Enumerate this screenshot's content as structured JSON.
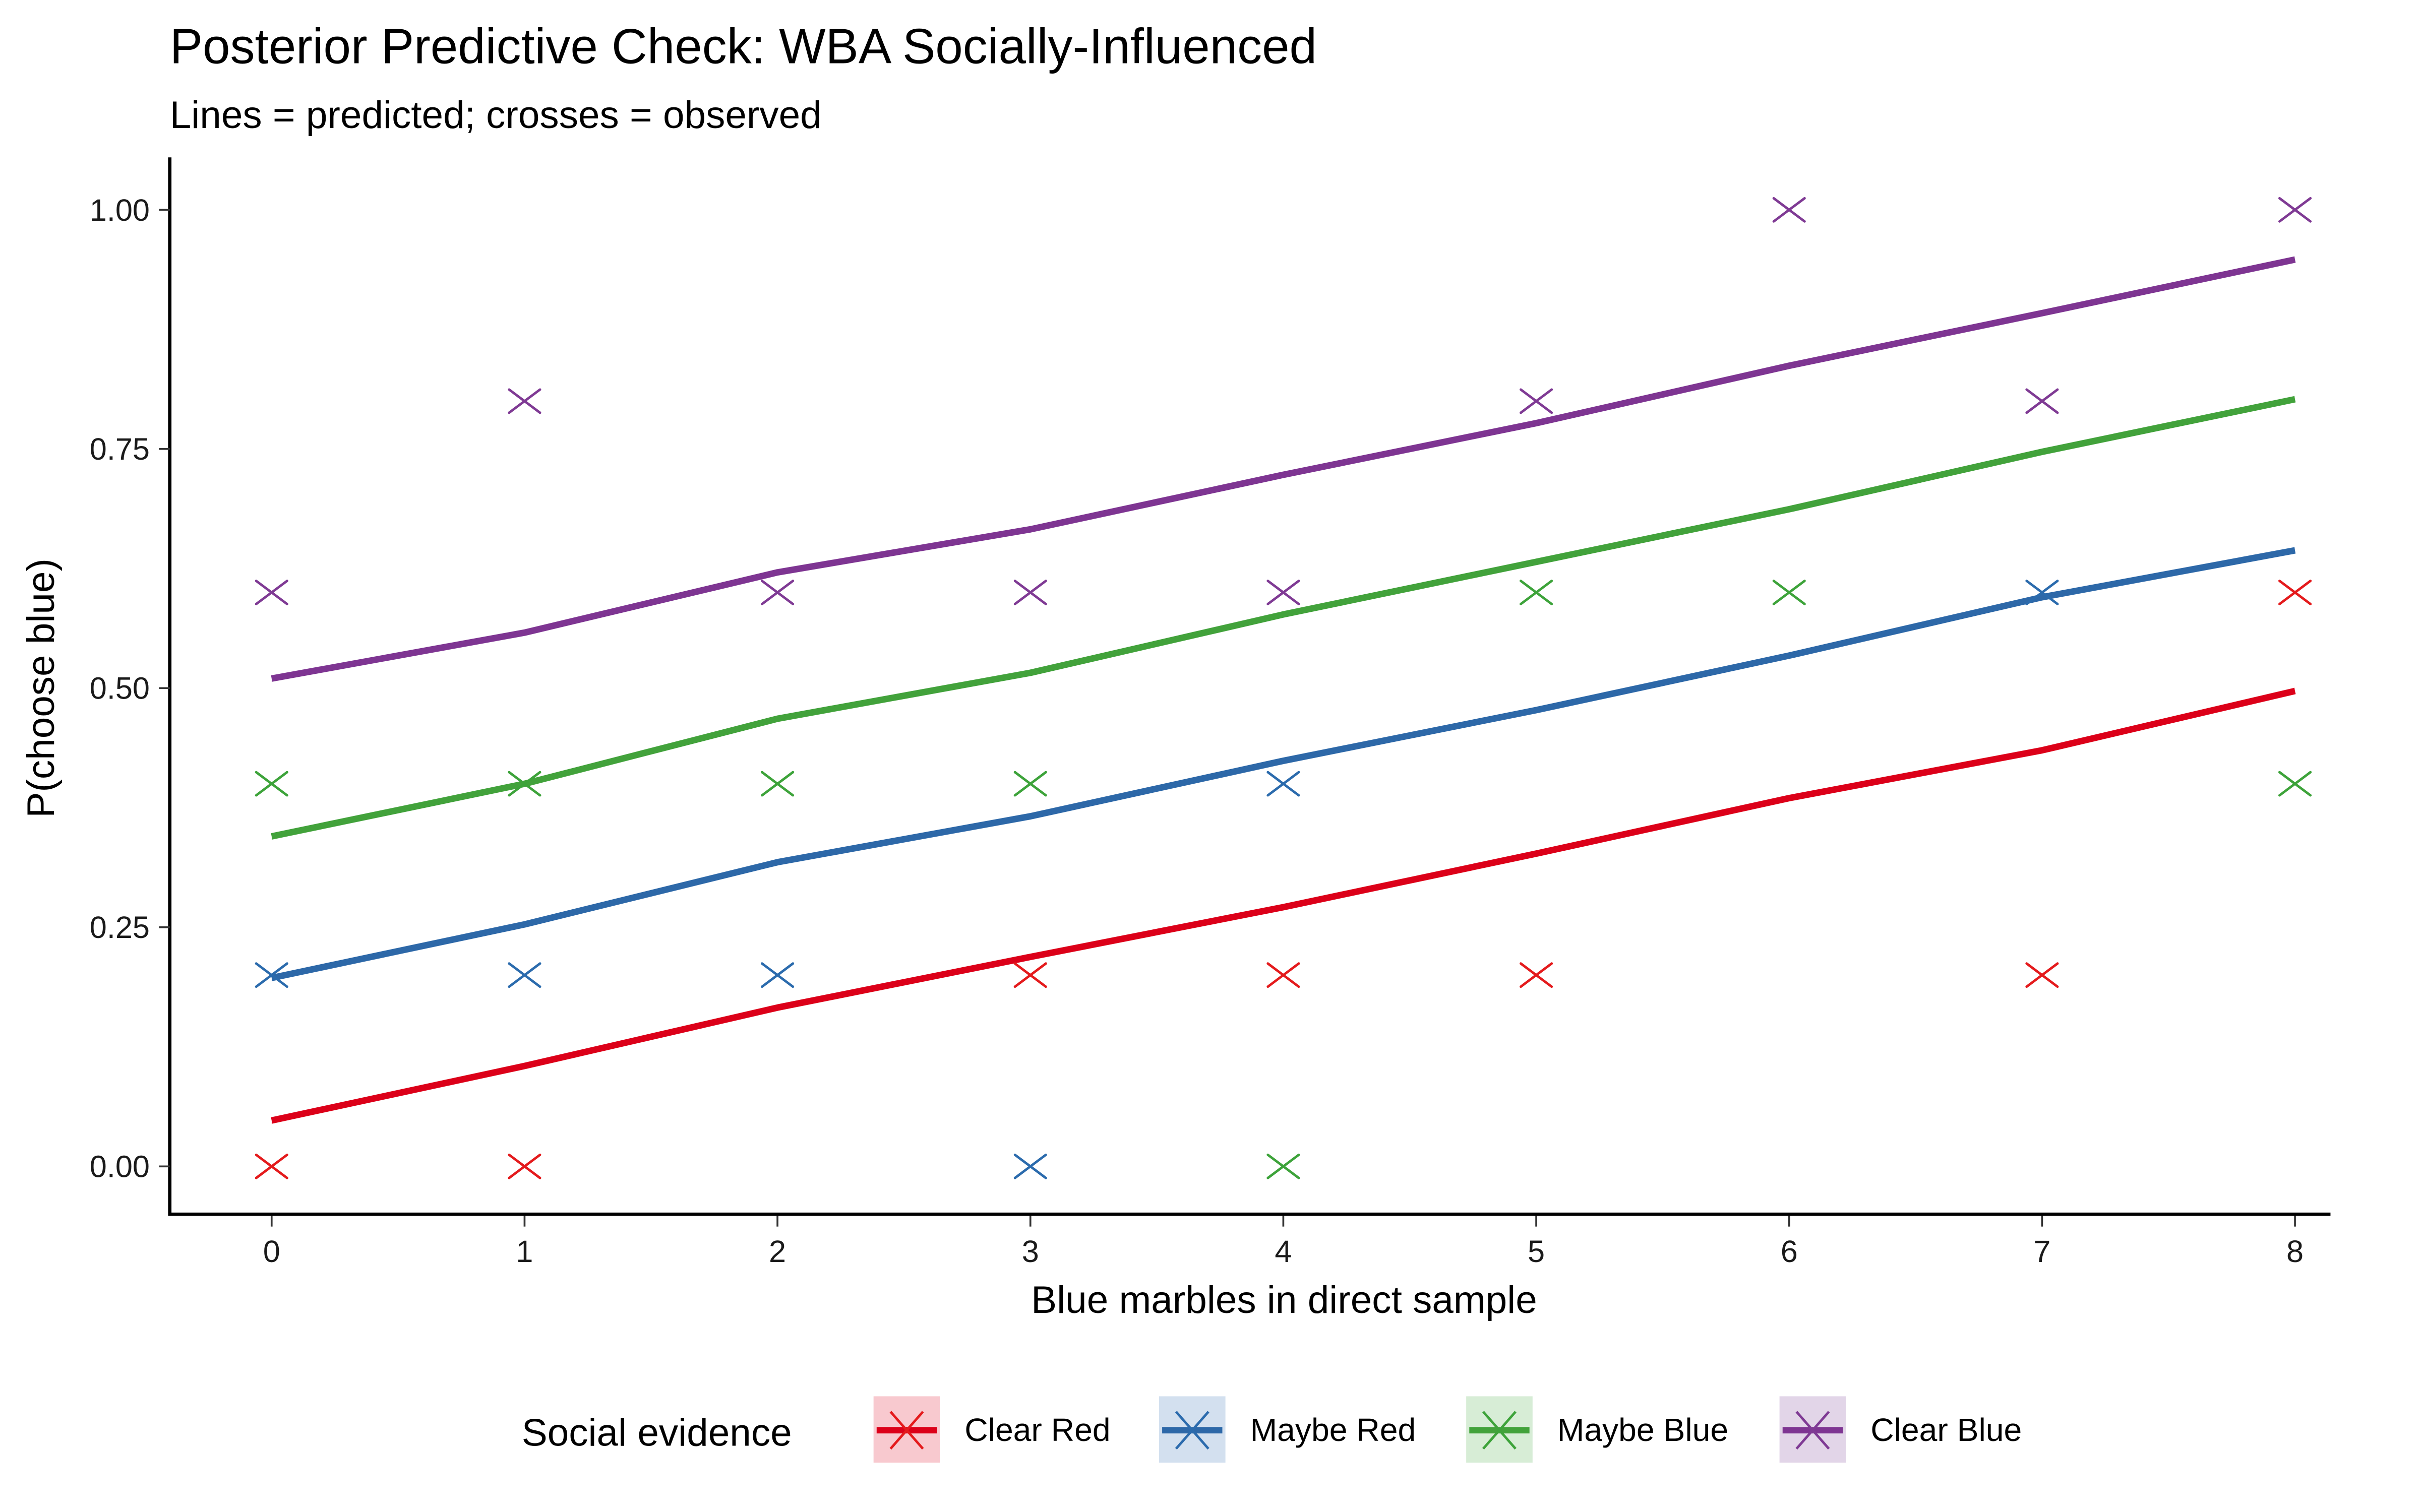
{
  "chart_data": {
    "type": "line",
    "title": "Posterior Predictive Check: WBA Socially-Influenced",
    "subtitle": "Lines = predicted; crosses = observed",
    "xlabel": "Blue marbles in direct sample",
    "ylabel": "P(choose blue)",
    "x": [
      0,
      1,
      2,
      3,
      4,
      5,
      6,
      7,
      8
    ],
    "xlim": [
      0,
      8
    ],
    "ylim": [
      0,
      1
    ],
    "x_ticks": [
      0,
      1,
      2,
      3,
      4,
      5,
      6,
      7,
      8
    ],
    "x_tick_labels": [
      "0",
      "1",
      "2",
      "3",
      "4",
      "5",
      "6",
      "7",
      "8"
    ],
    "y_ticks": [
      0,
      0.25,
      0.5,
      0.75,
      1.0
    ],
    "y_tick_labels": [
      "0.00",
      "0.25",
      "0.50",
      "0.75",
      "1.00"
    ],
    "grid": false,
    "legend": {
      "title": "Social evidence",
      "position": "bottom"
    },
    "series": [
      {
        "name": "Clear Red",
        "color": "#E41A1C",
        "line_color": "#DC0019",
        "ribbon_color": "#F8C9CF",
        "predicted": [
          0.048,
          0.105,
          0.166,
          0.219,
          0.271,
          0.327,
          0.385,
          0.435,
          0.497
        ],
        "observed": [
          {
            "x": 0,
            "y": 0.0
          },
          {
            "x": 1,
            "y": 0.0
          },
          {
            "x": 3,
            "y": 0.2
          },
          {
            "x": 4,
            "y": 0.2
          },
          {
            "x": 5,
            "y": 0.2
          },
          {
            "x": 7,
            "y": 0.2
          },
          {
            "x": 8,
            "y": 0.6
          }
        ]
      },
      {
        "name": "Maybe Red",
        "color": "#2B6BAD",
        "line_color": "#2D68A8",
        "ribbon_color": "#D3E0EF",
        "predicted": [
          0.197,
          0.253,
          0.318,
          0.366,
          0.424,
          0.477,
          0.534,
          0.595,
          0.644
        ],
        "observed": [
          {
            "x": 0,
            "y": 0.2
          },
          {
            "x": 1,
            "y": 0.2
          },
          {
            "x": 2,
            "y": 0.2
          },
          {
            "x": 3,
            "y": 0.0
          },
          {
            "x": 4,
            "y": 0.4
          },
          {
            "x": 7,
            "y": 0.6
          }
        ]
      },
      {
        "name": "Maybe Blue",
        "color": "#3DA33A",
        "line_color": "#42A23B",
        "ribbon_color": "#D7EDD6",
        "predicted": [
          0.345,
          0.4,
          0.468,
          0.516,
          0.577,
          0.632,
          0.687,
          0.747,
          0.802
        ],
        "observed": [
          {
            "x": 0,
            "y": 0.4
          },
          {
            "x": 1,
            "y": 0.4
          },
          {
            "x": 2,
            "y": 0.4
          },
          {
            "x": 3,
            "y": 0.4
          },
          {
            "x": 4,
            "y": 0.0
          },
          {
            "x": 5,
            "y": 0.6
          },
          {
            "x": 6,
            "y": 0.6
          },
          {
            "x": 8,
            "y": 0.4
          }
        ]
      },
      {
        "name": "Clear Blue",
        "color": "#7F3A94",
        "line_color": "#7E3592",
        "ribbon_color": "#E2D5E8",
        "predicted": [
          0.51,
          0.558,
          0.621,
          0.666,
          0.723,
          0.777,
          0.837,
          0.892,
          0.948
        ],
        "observed": [
          {
            "x": 0,
            "y": 0.6
          },
          {
            "x": 1,
            "y": 0.8
          },
          {
            "x": 2,
            "y": 0.6
          },
          {
            "x": 3,
            "y": 0.6
          },
          {
            "x": 4,
            "y": 0.6
          },
          {
            "x": 5,
            "y": 0.8
          },
          {
            "x": 6,
            "y": 1.0
          },
          {
            "x": 7,
            "y": 0.8
          },
          {
            "x": 8,
            "y": 1.0
          }
        ]
      }
    ]
  }
}
